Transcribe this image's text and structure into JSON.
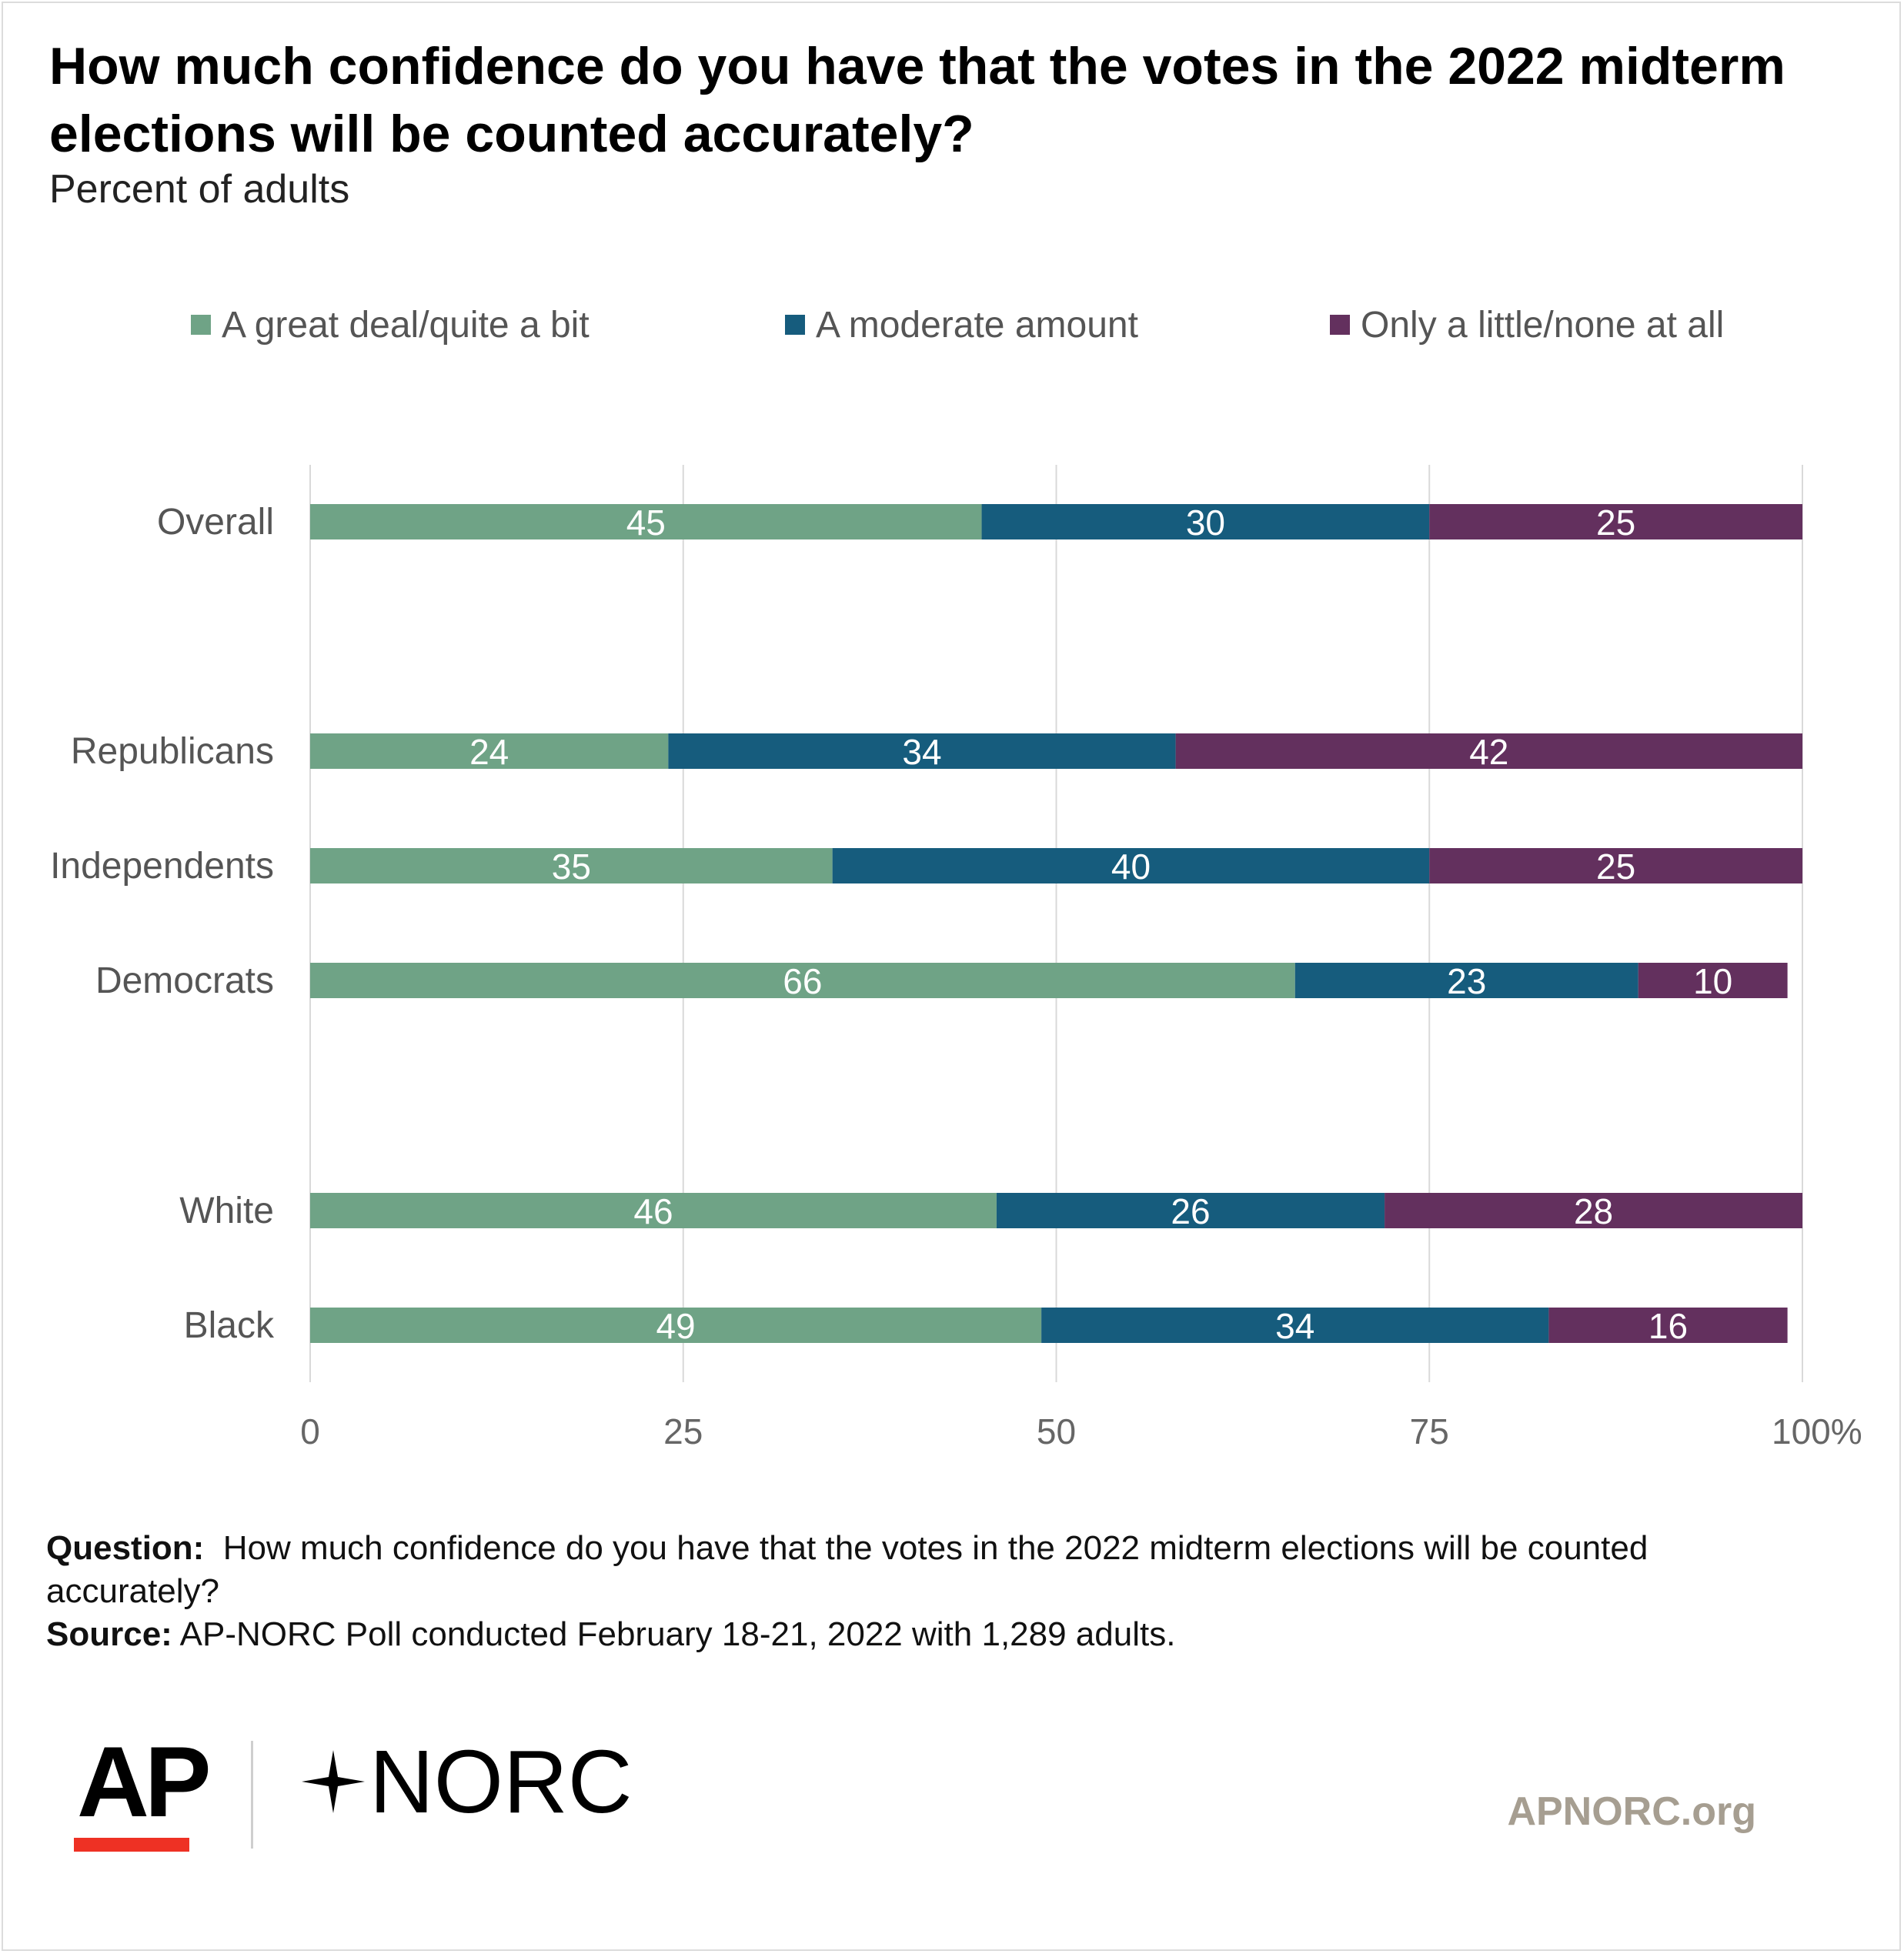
{
  "title": "How much confidence do you have that the votes in the 2022 midterm elections will be counted accurately?",
  "subtitle": "Percent of adults",
  "chart_data": {
    "type": "bar",
    "orientation": "horizontal",
    "stacked": true,
    "categories": [
      "Overall",
      "Republicans",
      "Independents",
      "Democrats",
      "White",
      "Black"
    ],
    "series": [
      {
        "name": "A great deal/quite a bit",
        "color": "#6fa386",
        "values": [
          45,
          24,
          35,
          66,
          46,
          49
        ]
      },
      {
        "name": "A moderate amount",
        "color": "#165c7d",
        "values": [
          30,
          34,
          40,
          23,
          26,
          34
        ]
      },
      {
        "name": "Only a little/none at all",
        "color": "#63305e",
        "values": [
          25,
          42,
          25,
          10,
          28,
          16
        ]
      }
    ],
    "xlim": [
      0,
      100
    ],
    "xticks": [
      "0",
      "25",
      "50",
      "75",
      "100%"
    ],
    "grid": true,
    "legend_position": "top"
  },
  "footer": {
    "question_label": "Question:",
    "question_text": "How much confidence do you have that the votes in the 2022 midterm elections will be counted accurately?",
    "source_label": "Source:",
    "source_text": "AP-NORC Poll conducted February 18-21, 2022 with 1,289 adults."
  },
  "logos": {
    "ap": "AP",
    "norc": "NORC",
    "ap_bar_color": "#ee3124"
  },
  "website": "APNORC.org"
}
